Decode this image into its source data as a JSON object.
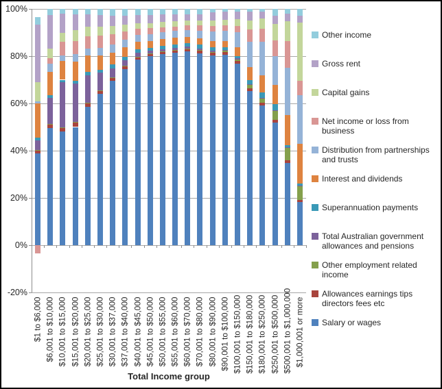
{
  "chart_data": {
    "type": "bar",
    "subtype": "stacked-100",
    "title": "",
    "xlabel": "Total Income group",
    "ylabel": "",
    "ylim": [
      -20,
      100
    ],
    "yticks": [
      {
        "value": 100,
        "label": "100%"
      },
      {
        "value": 80,
        "label": "80%"
      },
      {
        "value": 60,
        "label": "60%"
      },
      {
        "value": 40,
        "label": "40%"
      },
      {
        "value": 20,
        "label": "20%"
      },
      {
        "value": 0,
        "label": "0%"
      },
      {
        "value": -20,
        "label": "-20%"
      }
    ],
    "grid": true,
    "legend_position": "right",
    "categories": [
      "$1 to $6,000",
      "$6,001 to $10,000",
      "$10,001 to $15,000",
      "$15,001 to $20,000",
      "$20,001 to $25,000",
      "$25,001 to $30,000",
      "$30,001 to $37,000",
      "$37,001 to $40,000",
      "$40,001 to $45,000",
      "$45,001 to $50,000",
      "$50,001 to $55,000",
      "$55,001 to $60,000",
      "$60,001 to $70,000",
      "$70,001 to $80,000",
      "$80,001 to $90,000",
      "$90,001 to $100,000",
      "$100,001 to $150,000",
      "$150,001 to $180,000",
      "$180,001 to $250,000",
      "$250,001 to $500,000",
      "$500,001 to $1,000,000",
      "$1,000,001 or more"
    ],
    "series": [
      {
        "name": "Salary or wages",
        "color": "#4F81BD",
        "values": [
          38.8,
          49.5,
          48.0,
          50.0,
          58.6,
          64.0,
          69.6,
          74.6,
          78.5,
          79.9,
          80.8,
          81.5,
          82.0,
          81.3,
          80.4,
          80.7,
          76.7,
          65.2,
          59.1,
          51.9,
          34.7,
          18.2
        ]
      },
      {
        "name": "Allowances earnings tips directors fees etc",
        "color": "#A8443D",
        "values": [
          1.2,
          1.4,
          1.5,
          1.9,
          1.4,
          1.2,
          1.1,
          1.1,
          1.0,
          0.9,
          0.9,
          0.9,
          0.9,
          0.9,
          1.0,
          1.0,
          1.2,
          1.2,
          1.1,
          1.2,
          1.1,
          1.0
        ]
      },
      {
        "name": "Other employment related income",
        "color": "#84A04C",
        "values": [
          0.2,
          0.3,
          0.3,
          0.3,
          0.3,
          0.3,
          0.3,
          0.3,
          0.3,
          0.3,
          0.3,
          0.3,
          0.3,
          0.4,
          0.4,
          0.5,
          0.7,
          1.4,
          1.9,
          3.8,
          5.5,
          5.9
        ]
      },
      {
        "name": "Total Australian government allowances and pensions",
        "color": "#7C629B",
        "values": [
          4.2,
          11.2,
          19.2,
          16.2,
          11.7,
          7.4,
          3.7,
          2.4,
          1.6,
          1.1,
          1.0,
          0.9,
          0.8,
          0.7,
          0.6,
          0.5,
          0.4,
          0.3,
          0.3,
          0.3,
          0.2,
          0.2
        ]
      },
      {
        "name": "Superannuation payments",
        "color": "#3A99B7",
        "values": [
          1.2,
          1.0,
          1.0,
          1.3,
          1.2,
          1.4,
          1.7,
          1.4,
          1.4,
          1.4,
          1.4,
          1.4,
          1.5,
          1.5,
          1.3,
          1.0,
          1.0,
          1.7,
          2.1,
          2.4,
          0.9,
          0.7
        ]
      },
      {
        "name": "Interest and dividends",
        "color": "#DE8340",
        "values": [
          14.3,
          10.0,
          8.0,
          8.0,
          7.0,
          6.0,
          5.0,
          4.1,
          3.2,
          2.9,
          2.9,
          2.8,
          2.7,
          2.7,
          2.7,
          2.7,
          3.8,
          5.7,
          7.5,
          8.1,
          12.6,
          17.0
        ]
      },
      {
        "name": "Distribution from partnerships and trusts",
        "color": "#95B3D7",
        "values": [
          1.1,
          3.5,
          2.4,
          3.3,
          3.1,
          3.1,
          3.4,
          3.0,
          2.9,
          2.9,
          2.9,
          2.8,
          2.9,
          3.3,
          3.9,
          4.3,
          6.4,
          10.7,
          14.1,
          12.2,
          20.1,
          20.5
        ]
      },
      {
        "name": "Net income or loss from business",
        "color": "#D99694",
        "values": [
          -3.6,
          2.3,
          5.7,
          5.5,
          5.0,
          5.3,
          4.5,
          3.4,
          2.7,
          2.4,
          2.1,
          2.0,
          2.0,
          2.2,
          2.5,
          2.4,
          2.5,
          5.2,
          5.4,
          6.7,
          11.4,
          6.2
        ]
      },
      {
        "name": "Capital gains",
        "color": "#C3D69B",
        "values": [
          8.0,
          4.1,
          3.8,
          4.5,
          4.1,
          3.8,
          3.4,
          2.9,
          2.3,
          2.2,
          2.2,
          2.1,
          2.0,
          2.1,
          2.4,
          2.4,
          2.9,
          3.8,
          4.5,
          7.0,
          8.4,
          24.6
        ]
      },
      {
        "name": "Gross rent",
        "color": "#B3A2C7",
        "values": [
          24.4,
          14.2,
          8.1,
          6.8,
          5.2,
          4.9,
          4.3,
          4.0,
          3.5,
          3.5,
          3.1,
          3.0,
          2.7,
          2.7,
          3.4,
          3.2,
          3.2,
          3.7,
          2.9,
          3.6,
          3.1,
          2.8
        ]
      },
      {
        "name": "Other income",
        "color": "#93CDDD",
        "values": [
          3.0,
          2.5,
          2.0,
          2.2,
          2.4,
          2.6,
          3.0,
          2.8,
          2.6,
          2.5,
          2.4,
          2.3,
          2.2,
          2.2,
          1.4,
          1.3,
          1.2,
          1.1,
          1.1,
          2.8,
          2.0,
          2.9
        ]
      }
    ]
  },
  "colors": {
    "background": "#FFFFFF",
    "border": "#000000",
    "gridline": "#A6A6A6",
    "axis": "#8C8C8C",
    "text": "#262626"
  }
}
